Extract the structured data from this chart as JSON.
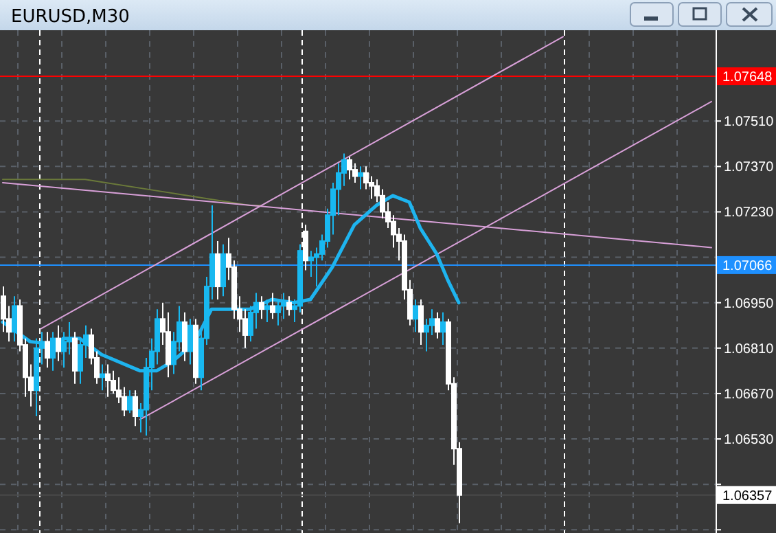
{
  "chart_data": {
    "type": "candlestick",
    "title": "EURUSD,M30",
    "categories": [
      null,
      null,
      null,
      null,
      null,
      null,
      null,
      null,
      null,
      null,
      null,
      null,
      null,
      null,
      null,
      null,
      null,
      null,
      null,
      null,
      null,
      null,
      null,
      null,
      null,
      null,
      null,
      null,
      null,
      null,
      null,
      null,
      null,
      null,
      null,
      null,
      null,
      null,
      null,
      null,
      null,
      null,
      null,
      null,
      null,
      null,
      null,
      null,
      null,
      null,
      null,
      null,
      null,
      null,
      null,
      null,
      null,
      null,
      null,
      null,
      null,
      null,
      null,
      null,
      null,
      null,
      null,
      null,
      null,
      null,
      null,
      null,
      null,
      null,
      null,
      null,
      null,
      null,
      null,
      null,
      null,
      null,
      null,
      null,
      null,
      null,
      null,
      null,
      null,
      null,
      null,
      null,
      null,
      null,
      null,
      null,
      null,
      null,
      null,
      null,
      null,
      null,
      null,
      null,
      null,
      null,
      null,
      null,
      null,
      null,
      null,
      null,
      null,
      null,
      null,
      null,
      null,
      null,
      null,
      null,
      null,
      null,
      null,
      null,
      null,
      null,
      null,
      null,
      null,
      null
    ],
    "ohlc": [
      [
        1.0697,
        1.07,
        1.0686,
        1.069
      ],
      [
        1.069,
        1.0694,
        1.0683,
        1.0686
      ],
      [
        1.0686,
        1.0697,
        1.0683,
        1.0694
      ],
      [
        1.0694,
        1.0696,
        1.068,
        1.0682
      ],
      [
        1.0682,
        1.0684,
        1.0666,
        1.0672
      ],
      [
        1.0672,
        1.0676,
        1.0663,
        1.0668
      ],
      [
        1.0668,
        1.0684,
        1.066,
        1.0681
      ],
      [
        1.0681,
        1.0686,
        1.0676,
        1.0683
      ],
      [
        1.0683,
        1.0686,
        1.0675,
        1.0678
      ],
      [
        1.0678,
        1.0686,
        1.0674,
        1.0684
      ],
      [
        1.0684,
        1.0688,
        1.0677,
        1.068
      ],
      [
        1.068,
        1.0686,
        1.0675,
        1.0683
      ],
      [
        1.0683,
        1.0689,
        1.0679,
        1.0684
      ],
      [
        1.0684,
        1.0686,
        1.067,
        1.0674
      ],
      [
        1.0674,
        1.0684,
        1.067,
        1.0682
      ],
      [
        1.0682,
        1.0688,
        1.0678,
        1.0685
      ],
      [
        1.0685,
        1.0687,
        1.0676,
        1.0678
      ],
      [
        1.0678,
        1.068,
        1.067,
        1.0672
      ],
      [
        1.0672,
        1.0676,
        1.0668,
        1.0673
      ],
      [
        1.0673,
        1.0676,
        1.0666,
        1.0671
      ],
      [
        1.0671,
        1.0674,
        1.0667,
        1.0668
      ],
      [
        1.0668,
        1.0672,
        1.0664,
        1.0666
      ],
      [
        1.0666,
        1.0669,
        1.066,
        1.0662
      ],
      [
        1.0662,
        1.0668,
        1.0661,
        1.0666
      ],
      [
        1.0666,
        1.0668,
        1.0657,
        1.066
      ],
      [
        1.066,
        1.0664,
        1.0655,
        1.0662
      ],
      [
        1.0662,
        1.0678,
        1.0654,
        1.0675
      ],
      [
        1.0675,
        1.0684,
        1.0668,
        1.068
      ],
      [
        1.068,
        1.0693,
        1.0676,
        1.069
      ],
      [
        1.069,
        1.0695,
        1.0682,
        1.0686
      ],
      [
        1.0686,
        1.0692,
        1.0672,
        1.0676
      ],
      [
        1.0676,
        1.0686,
        1.0673,
        1.0683
      ],
      [
        1.0683,
        1.0694,
        1.068,
        1.0689
      ],
      [
        1.0689,
        1.0692,
        1.0677,
        1.068
      ],
      [
        1.068,
        1.069,
        1.0676,
        1.0688
      ],
      [
        1.0688,
        1.069,
        1.067,
        1.0672
      ],
      [
        1.0672,
        1.0686,
        1.0668,
        1.0684
      ],
      [
        1.0684,
        1.0703,
        1.0682,
        1.07
      ],
      [
        1.07,
        1.0725,
        1.0696,
        1.071
      ],
      [
        1.071,
        1.0714,
        1.0696,
        1.07
      ],
      [
        1.07,
        1.0713,
        1.0697,
        1.071
      ],
      [
        1.071,
        1.0715,
        1.0702,
        1.0706
      ],
      [
        1.0706,
        1.0708,
        1.069,
        1.0693
      ],
      [
        1.0693,
        1.0697,
        1.0686,
        1.069
      ],
      [
        1.069,
        1.0693,
        1.0681,
        1.0685
      ],
      [
        1.0685,
        1.0694,
        1.0683,
        1.0692
      ],
      [
        1.0692,
        1.0698,
        1.0687,
        1.0695
      ],
      [
        1.0695,
        1.0697,
        1.069,
        1.0693
      ],
      [
        1.0693,
        1.0696,
        1.0689,
        1.0694
      ],
      [
        1.0694,
        1.0698,
        1.069,
        1.0692
      ],
      [
        1.0692,
        1.0696,
        1.0688,
        1.0694
      ],
      [
        1.0694,
        1.0698,
        1.069,
        1.0695
      ],
      [
        1.0695,
        1.0697,
        1.0691,
        1.0693
      ],
      [
        1.0693,
        1.0696,
        1.0689,
        1.0694
      ],
      [
        1.0694,
        1.0713,
        1.0692,
        1.0711
      ],
      [
        1.0717,
        1.0719,
        1.0705,
        1.0708
      ],
      [
        1.0708,
        1.0711,
        1.0703,
        1.0709
      ],
      [
        1.0709,
        1.0712,
        1.07,
        1.071
      ],
      [
        1.071,
        1.0716,
        1.0708,
        1.0714
      ],
      [
        1.0714,
        1.0724,
        1.0712,
        1.0722
      ],
      [
        1.0722,
        1.0732,
        1.0716,
        1.073
      ],
      [
        1.073,
        1.0738,
        1.0722,
        1.0735
      ],
      [
        1.0735,
        1.0741,
        1.0731,
        1.0739
      ],
      [
        1.0739,
        1.074,
        1.0733,
        1.0736
      ],
      [
        1.0736,
        1.0738,
        1.0732,
        1.0734
      ],
      [
        1.0734,
        1.0737,
        1.073,
        1.0735
      ],
      [
        1.0735,
        1.0737,
        1.073,
        1.0732
      ],
      [
        1.0732,
        1.0734,
        1.0727,
        1.0731
      ],
      [
        1.0731,
        1.0733,
        1.0726,
        1.0728
      ],
      [
        1.0728,
        1.073,
        1.0721,
        1.0723
      ],
      [
        1.0723,
        1.0726,
        1.0718,
        1.072
      ],
      [
        1.072,
        1.0722,
        1.0712,
        1.0716
      ],
      [
        1.0716,
        1.0718,
        1.0708,
        1.0714
      ],
      [
        1.0714,
        1.0716,
        1.0696,
        1.0699
      ],
      [
        1.0699,
        1.0702,
        1.0688,
        1.069
      ],
      [
        1.069,
        1.0696,
        1.0686,
        1.0694
      ],
      [
        1.0694,
        1.0696,
        1.0682,
        1.0686
      ],
      [
        1.0686,
        1.069,
        1.068,
        1.0688
      ],
      [
        1.0688,
        1.0693,
        1.0685,
        1.069
      ],
      [
        1.069,
        1.0692,
        1.0684,
        1.0686
      ],
      [
        1.0686,
        1.0692,
        1.0682,
        1.0689
      ],
      [
        1.0689,
        1.069,
        1.0668,
        1.067
      ],
      [
        1.067,
        1.0672,
        1.0645,
        1.065
      ],
      [
        1.065,
        1.0652,
        1.0627,
        1.06357
      ],
      null,
      null,
      null,
      null,
      null,
      null,
      null,
      null,
      null,
      null,
      null,
      null,
      null,
      null,
      null,
      null,
      null,
      null,
      null,
      null,
      null,
      null,
      null,
      null,
      null,
      null,
      null,
      null,
      null,
      null,
      null,
      null,
      null,
      null,
      null,
      null,
      null,
      null,
      null,
      null,
      null,
      null,
      null,
      null,
      null,
      null
    ],
    "series": [
      {
        "type": "line",
        "color": "#6b7a3a",
        "values": [
          1.0733,
          null,
          null,
          null,
          null,
          null,
          null,
          null,
          null,
          null,
          null,
          null,
          null,
          null,
          null,
          1.0733,
          null,
          null,
          null,
          null,
          null,
          null,
          null,
          null,
          null,
          null,
          null,
          null,
          null,
          null,
          1.0729,
          null,
          null,
          null,
          null,
          null,
          null,
          null,
          null,
          null,
          null,
          null,
          null,
          null,
          null,
          1.0725,
          null,
          1.0725,
          null,
          null,
          null,
          null,
          null,
          null,
          null,
          null,
          null,
          null,
          null,
          null,
          null,
          null,
          null,
          null,
          null,
          null,
          null,
          null,
          null,
          null,
          null,
          null,
          null,
          null,
          null,
          null,
          null,
          null,
          null,
          null,
          null,
          null,
          null,
          null,
          null,
          null,
          null,
          null,
          null,
          null,
          null,
          null,
          null,
          null,
          null,
          null,
          null,
          null,
          null,
          null,
          null,
          null,
          null,
          null,
          null,
          null,
          null,
          null,
          null,
          null,
          null,
          null,
          null,
          null,
          null,
          null,
          null,
          null,
          null,
          null,
          null,
          null,
          null,
          null,
          null,
          null,
          null,
          null,
          null,
          null
        ]
      },
      {
        "type": "line",
        "color": "#d8a0d8",
        "values": [
          1.0732,
          null,
          null,
          null,
          null,
          null,
          null,
          null,
          null,
          null,
          null,
          null,
          null,
          null,
          null,
          null,
          null,
          null,
          null,
          null,
          null,
          null,
          null,
          null,
          null,
          null,
          null,
          null,
          null,
          null,
          null,
          null,
          null,
          null,
          null,
          null,
          null,
          null,
          null,
          null,
          null,
          null,
          null,
          null,
          null,
          null,
          null,
          null,
          null,
          null,
          null,
          null,
          null,
          null,
          null,
          null,
          null,
          null,
          null,
          null,
          null,
          null,
          null,
          null,
          null,
          null,
          null,
          null,
          null,
          null,
          null,
          null,
          null,
          null,
          null,
          null,
          null,
          null,
          null,
          null,
          null,
          null,
          null,
          null,
          null,
          null,
          null,
          null,
          null,
          null,
          null,
          null,
          null,
          null,
          null,
          null,
          null,
          null,
          null,
          null,
          null,
          null,
          null,
          null,
          null,
          null,
          null,
          null,
          null,
          null,
          null,
          null,
          null,
          null,
          null,
          null,
          null,
          null,
          null,
          null,
          null,
          null,
          null,
          null,
          null,
          null,
          null,
          null,
          null,
          1.0712
        ]
      },
      {
        "type": "line",
        "color": "#d8a0d8",
        "values": [
          null,
          null,
          null,
          null,
          null,
          null,
          null,
          1.0687,
          null,
          null,
          null,
          null,
          null,
          null,
          null,
          null,
          null,
          null,
          null,
          null,
          null,
          null,
          null,
          null,
          null,
          null,
          null,
          null,
          null,
          null,
          null,
          null,
          null,
          null,
          null,
          null,
          null,
          null,
          null,
          null,
          null,
          null,
          null,
          null,
          null,
          null,
          null,
          null,
          null,
          null,
          null,
          null,
          null,
          null,
          null,
          null,
          null,
          null,
          null,
          null,
          null,
          null,
          null,
          null,
          null,
          null,
          null,
          null,
          null,
          null,
          null,
          null,
          null,
          null,
          null,
          null,
          null,
          null,
          null,
          null,
          null,
          null,
          null,
          null,
          null,
          null,
          null,
          null,
          null,
          null,
          null,
          null,
          null,
          null,
          null,
          null,
          null,
          null,
          null,
          null,
          null,
          null,
          1.0777,
          null,
          null,
          null,
          null,
          null,
          null,
          null,
          null,
          null,
          null,
          null,
          null,
          null,
          null,
          null,
          null,
          null,
          null,
          null,
          null,
          null,
          null,
          null,
          null,
          null,
          null,
          null
        ]
      },
      {
        "type": "line",
        "color": "#d8a0d8",
        "values": [
          null,
          null,
          null,
          null,
          null,
          null,
          null,
          null,
          null,
          null,
          null,
          null,
          null,
          null,
          null,
          null,
          null,
          null,
          null,
          null,
          null,
          null,
          null,
          null,
          null,
          1.0659,
          null,
          null,
          null,
          null,
          null,
          null,
          null,
          null,
          null,
          null,
          null,
          null,
          null,
          null,
          null,
          null,
          null,
          null,
          null,
          null,
          null,
          null,
          null,
          null,
          null,
          null,
          null,
          null,
          null,
          null,
          null,
          null,
          null,
          null,
          null,
          null,
          null,
          null,
          null,
          null,
          null,
          null,
          null,
          null,
          null,
          null,
          null,
          null,
          null,
          null,
          null,
          null,
          null,
          null,
          null,
          null,
          null,
          null,
          null,
          null,
          null,
          null,
          null,
          null,
          null,
          null,
          null,
          null,
          null,
          null,
          null,
          null,
          null,
          null,
          null,
          null,
          null,
          null,
          null,
          null,
          null,
          null,
          null,
          null,
          null,
          null,
          null,
          null,
          null,
          null,
          null,
          null,
          null,
          null,
          null,
          null,
          null,
          null,
          null,
          null,
          null,
          null,
          null,
          1.0757
        ]
      },
      {
        "type": "line",
        "color": "#1eb4ef",
        "values": [
          1.0689,
          null,
          null,
          null,
          null,
          1.0683,
          null,
          null,
          null,
          null,
          1.0682,
          1.0684,
          null,
          null,
          1.0684,
          null,
          null,
          null,
          1.0679,
          null,
          null,
          null,
          null,
          null,
          null,
          1.0674,
          null,
          null,
          1.0674,
          null,
          null,
          1.0677,
          null,
          null,
          null,
          1.0683,
          null,
          null,
          1.0693,
          null,
          null,
          1.0693,
          null,
          null,
          null,
          1.0693,
          null,
          null,
          null,
          1.0696,
          null,
          null,
          null,
          1.0695,
          null,
          null,
          1.0696,
          null,
          null,
          null,
          1.0706,
          null,
          null,
          null,
          1.0719,
          null,
          null,
          null,
          1.0725,
          null,
          null,
          1.0728,
          null,
          null,
          1.0726,
          null,
          1.0718,
          null,
          null,
          1.071,
          null,
          1.0702,
          null,
          1.0695,
          null,
          null,
          null,
          null,
          null,
          null,
          null,
          null,
          null,
          null,
          null,
          null,
          null,
          null,
          null,
          null,
          null,
          null,
          null,
          null,
          null,
          null,
          null,
          null,
          null,
          null,
          null,
          null,
          null,
          null,
          null,
          null,
          null,
          null,
          null,
          null,
          null,
          null,
          null,
          null,
          null,
          null,
          null,
          null,
          null,
          null
        ]
      }
    ],
    "ylim": [
      1.0624,
      1.0779
    ],
    "yticks": [
      {
        "value": 1.0625,
        "label": null
      },
      {
        "value": 1.0639,
        "label": null
      },
      {
        "value": 1.0653,
        "label": "1.06530"
      },
      {
        "value": 1.0667,
        "label": "1.06670"
      },
      {
        "value": 1.0681,
        "label": "1.06810"
      },
      {
        "value": 1.0695,
        "label": "1.06950"
      },
      {
        "value": 1.0709,
        "label": null
      },
      {
        "value": 1.0723,
        "label": "1.07230"
      },
      {
        "value": 1.0737,
        "label": "1.07370"
      },
      {
        "value": 1.0751,
        "label": "1.07510"
      }
    ],
    "ref_lines": [
      {
        "axis": "y",
        "value": 1.07648,
        "label": "1.07648",
        "color": "#ff0000"
      },
      {
        "axis": "y",
        "value": 1.07066,
        "label": "1.07066",
        "color": "#1e90ff"
      },
      {
        "axis": "y",
        "value": 1.06357,
        "label": "1.06357",
        "color": "#4a4a4a"
      }
    ],
    "grid": true,
    "tick_labels": "y",
    "marker": "none",
    "line_style": "solid"
  }
}
